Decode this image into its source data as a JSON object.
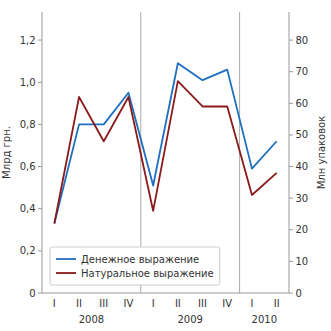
{
  "chart_data": {
    "type": "line",
    "categories": [
      "I",
      "II",
      "III",
      "IV",
      "I",
      "II",
      "III",
      "IV",
      "I",
      "II"
    ],
    "annotations": [
      {
        "text": "2008",
        "from": 0,
        "to": 3
      },
      {
        "text": "2009",
        "from": 4,
        "to": 7
      },
      {
        "text": "2010",
        "from": 8,
        "to": 9
      }
    ],
    "series": [
      {
        "name": "Денежное выражение",
        "color": "#1E6FBF",
        "values": [
          0.33,
          0.8,
          0.8,
          0.95,
          0.51,
          1.09,
          1.01,
          1.06,
          0.59,
          0.72
        ]
      },
      {
        "name": "Натуральное выражение",
        "color": "#8B1A1A",
        "axis": "y2",
        "values": [
          22,
          62,
          48,
          62,
          26,
          67,
          59,
          59,
          31,
          38
        ]
      }
    ],
    "ylabel": "Млрд грн.",
    "y2label": "Млн упаковок",
    "ylim": [
      0,
      1.3333
    ],
    "yticks": [
      0,
      {
        "value": 0.2,
        "label": "0,2"
      },
      {
        "value": 0.4,
        "label": "0,4"
      },
      {
        "value": 0.6,
        "label": "0,6"
      },
      {
        "value": 0.8,
        "label": "0,8"
      },
      {
        "value": 1.0,
        "label": "1,0"
      },
      {
        "value": 1.2,
        "label": "1,2"
      }
    ],
    "y2lim": [
      0,
      88.89
    ],
    "y2ticks": [
      0,
      10,
      20,
      30,
      40,
      50,
      60,
      70,
      80
    ],
    "legend": "lower left",
    "grid": false
  }
}
